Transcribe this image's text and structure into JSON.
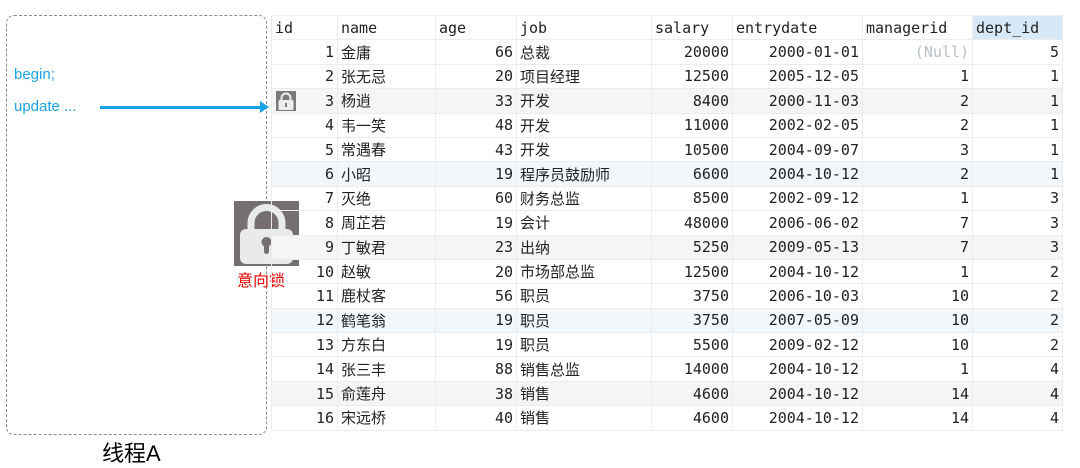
{
  "annotation": {
    "code_lines": [
      "begin;",
      "update ..."
    ],
    "thread_label": "线程A",
    "lock_label": "意向锁",
    "accent_color": "#1aa3e8",
    "lock_label_color": "#ee0000"
  },
  "table": {
    "columns": [
      "id",
      "name",
      "age",
      "job",
      "salary",
      "entrydate",
      "managerid",
      "dept_id"
    ],
    "selected_column": "dept_id",
    "locked_row_id": 3,
    "rows": [
      [
        "1",
        "金庸",
        "66",
        "总裁",
        "20000",
        "2000-01-01",
        "(Null)",
        "5"
      ],
      [
        "2",
        "张无忌",
        "20",
        "项目经理",
        "12500",
        "2005-12-05",
        "1",
        "1"
      ],
      [
        "3",
        "杨逍",
        "33",
        "开发",
        "8400",
        "2000-11-03",
        "2",
        "1"
      ],
      [
        "4",
        "韦一笑",
        "48",
        "开发",
        "11000",
        "2002-02-05",
        "2",
        "1"
      ],
      [
        "5",
        "常遇春",
        "43",
        "开发",
        "10500",
        "2004-09-07",
        "3",
        "1"
      ],
      [
        "6",
        "小昭",
        "19",
        "程序员鼓励师",
        "6600",
        "2004-10-12",
        "2",
        "1"
      ],
      [
        "7",
        "灭绝",
        "60",
        "财务总监",
        "8500",
        "2002-09-12",
        "1",
        "3"
      ],
      [
        "8",
        "周芷若",
        "19",
        "会计",
        "48000",
        "2006-06-02",
        "7",
        "3"
      ],
      [
        "9",
        "丁敏君",
        "23",
        "出纳",
        "5250",
        "2009-05-13",
        "7",
        "3"
      ],
      [
        "10",
        "赵敏",
        "20",
        "市场部总监",
        "12500",
        "2004-10-12",
        "1",
        "2"
      ],
      [
        "11",
        "鹿杖客",
        "56",
        "职员",
        "3750",
        "2006-10-03",
        "10",
        "2"
      ],
      [
        "12",
        "鹤笔翁",
        "19",
        "职员",
        "3750",
        "2007-05-09",
        "10",
        "2"
      ],
      [
        "13",
        "方东白",
        "19",
        "职员",
        "5500",
        "2009-02-12",
        "10",
        "2"
      ],
      [
        "14",
        "张三丰",
        "88",
        "销售总监",
        "14000",
        "2004-10-12",
        "1",
        "4"
      ],
      [
        "15",
        "俞莲舟",
        "38",
        "销售",
        "4600",
        "2004-10-12",
        "14",
        "4"
      ],
      [
        "16",
        "宋远桥",
        "40",
        "销售",
        "4600",
        "2004-10-12",
        "14",
        "4"
      ]
    ]
  }
}
